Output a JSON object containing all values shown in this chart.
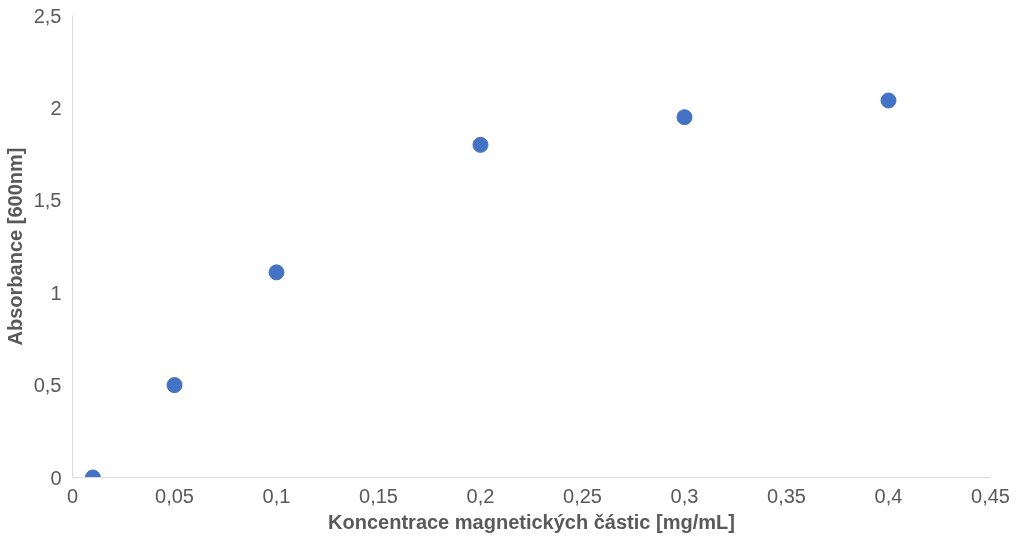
{
  "chart_data": {
    "type": "scatter",
    "xlabel": "Koncentrace magnetických částic [mg/mL]",
    "ylabel": "Absorbance [600nm]",
    "x": [
      0.01,
      0.05,
      0.1,
      0.2,
      0.3,
      0.4
    ],
    "series": [
      {
        "color": "#4472c4",
        "values": [
          0,
          0.5,
          1.11,
          1.8,
          1.95,
          2.04
        ]
      }
    ],
    "xlim": [
      0,
      0.45
    ],
    "ylim": [
      0,
      2.5
    ],
    "xticks": [
      0,
      {
        "value": 0.05,
        "label": "0,05"
      },
      {
        "value": 0.1,
        "label": "0,1"
      },
      {
        "value": 0.15,
        "label": "0,15"
      },
      {
        "value": 0.2,
        "label": "0,2"
      },
      {
        "value": 0.25,
        "label": "0,25"
      },
      {
        "value": 0.3,
        "label": "0,3"
      },
      {
        "value": 0.35,
        "label": "0,35"
      },
      {
        "value": 0.4,
        "label": "0,4"
      },
      {
        "value": 0.45,
        "label": "0,45"
      }
    ],
    "yticks": [
      0,
      {
        "value": 0.5,
        "label": "0,5"
      },
      1,
      {
        "value": 1.5,
        "label": "1,5"
      },
      2,
      {
        "value": 2.5,
        "label": "2,5"
      }
    ],
    "grid": false,
    "marker": "circle"
  }
}
